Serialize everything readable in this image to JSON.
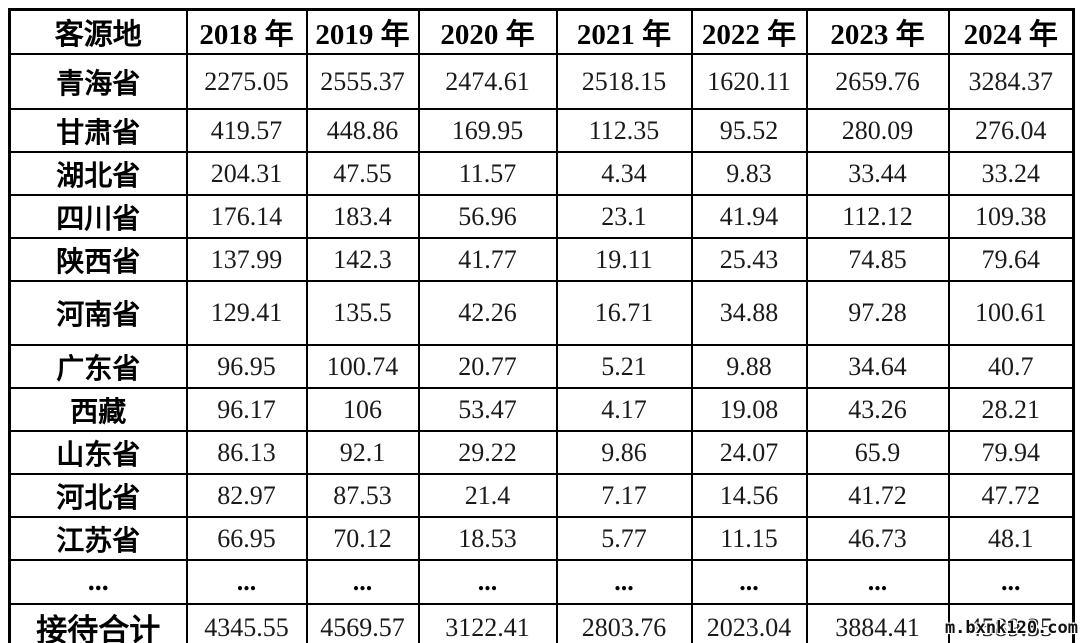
{
  "chart_data": {
    "type": "table",
    "title": "",
    "columns": [
      "客源地",
      "2018 年",
      "2019 年",
      "2020 年",
      "2021 年",
      "2022 年",
      "2023 年",
      "2024 年"
    ],
    "rows": [
      {
        "label": "青海省",
        "values": [
          "2275.05",
          "2555.37",
          "2474.61",
          "2518.15",
          "1620.11",
          "2659.76",
          "3284.37"
        ]
      },
      {
        "label": "甘肃省",
        "values": [
          "419.57",
          "448.86",
          "169.95",
          "112.35",
          "95.52",
          "280.09",
          "276.04"
        ]
      },
      {
        "label": "湖北省",
        "values": [
          "204.31",
          "47.55",
          "11.57",
          "4.34",
          "9.83",
          "33.44",
          "33.24"
        ]
      },
      {
        "label": "四川省",
        "values": [
          "176.14",
          "183.4",
          "56.96",
          "23.1",
          "41.94",
          "112.12",
          "109.38"
        ]
      },
      {
        "label": "陕西省",
        "values": [
          "137.99",
          "142.3",
          "41.77",
          "19.11",
          "25.43",
          "74.85",
          "79.64"
        ]
      },
      {
        "label": "河南省",
        "values": [
          "129.41",
          "135.5",
          "42.26",
          "16.71",
          "34.88",
          "97.28",
          "100.61"
        ]
      },
      {
        "label": "广东省",
        "values": [
          "96.95",
          "100.74",
          "20.77",
          "5.21",
          "9.88",
          "34.64",
          "40.7"
        ]
      },
      {
        "label": "西藏",
        "values": [
          "96.17",
          "106",
          "53.47",
          "4.17",
          "19.08",
          "43.26",
          "28.21"
        ]
      },
      {
        "label": "山东省",
        "values": [
          "86.13",
          "92.1",
          "29.22",
          "9.86",
          "24.07",
          "65.9",
          "79.94"
        ]
      },
      {
        "label": "河北省",
        "values": [
          "82.97",
          "87.53",
          "21.4",
          "7.17",
          "14.56",
          "41.72",
          "47.72"
        ]
      },
      {
        "label": "江苏省",
        "values": [
          "66.95",
          "70.12",
          "18.53",
          "5.77",
          "11.15",
          "46.73",
          "48.1"
        ]
      },
      {
        "label": "...",
        "values": [
          "...",
          "...",
          "...",
          "...",
          "...",
          "...",
          "..."
        ]
      },
      {
        "label": "接待合计",
        "values": [
          "4345.55",
          "4569.57",
          "3122.41",
          "2803.76",
          "2023.04",
          "3884.41",
          "4589.35"
        ]
      }
    ]
  },
  "watermark": "m.bxnk120.com"
}
